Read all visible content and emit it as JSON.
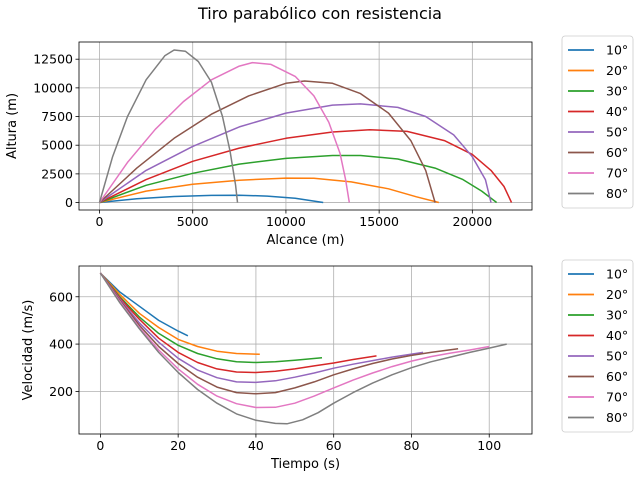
{
  "figure": {
    "title": "Tiro parabólico con resistencia"
  },
  "colors": [
    "#1f77b4",
    "#ff7f0e",
    "#2ca02c",
    "#d62728",
    "#9467bd",
    "#8c564b",
    "#e377c2",
    "#7f7f7f"
  ],
  "chart_data": [
    {
      "type": "line",
      "title": "",
      "xlabel": "Alcance (m)",
      "ylabel": "Altura (m)",
      "xlim": [
        -1100,
        23200
      ],
      "ylim": [
        -650,
        14000
      ],
      "xticks": [
        0,
        5000,
        10000,
        15000,
        20000
      ],
      "yticks": [
        0,
        2500,
        5000,
        7500,
        10000,
        12500
      ],
      "grid": true,
      "legend": "outside-right",
      "series": [
        {
          "name": "10°",
          "points": [
            [
              0,
              0
            ],
            [
              2000,
              330
            ],
            [
              4000,
              530
            ],
            [
              6000,
              620
            ],
            [
              7500,
              640
            ],
            [
              9000,
              560
            ],
            [
              10500,
              370
            ],
            [
              12000,
              0
            ]
          ]
        },
        {
          "name": "20°",
          "points": [
            [
              0,
              0
            ],
            [
              2500,
              1000
            ],
            [
              5000,
              1600
            ],
            [
              7500,
              1950
            ],
            [
              10000,
              2130
            ],
            [
              11500,
              2110
            ],
            [
              13500,
              1800
            ],
            [
              15500,
              1200
            ],
            [
              17000,
              500
            ],
            [
              18200,
              0
            ]
          ]
        },
        {
          "name": "30°",
          "points": [
            [
              0,
              0
            ],
            [
              2500,
              1500
            ],
            [
              5000,
              2550
            ],
            [
              7500,
              3350
            ],
            [
              10000,
              3850
            ],
            [
              12500,
              4100
            ],
            [
              14000,
              4100
            ],
            [
              16000,
              3800
            ],
            [
              18000,
              3000
            ],
            [
              19500,
              2000
            ],
            [
              20500,
              1000
            ],
            [
              21300,
              0
            ]
          ]
        },
        {
          "name": "40°",
          "points": [
            [
              0,
              0
            ],
            [
              2500,
              2000
            ],
            [
              5000,
              3600
            ],
            [
              7500,
              4750
            ],
            [
              10000,
              5600
            ],
            [
              12500,
              6150
            ],
            [
              14500,
              6350
            ],
            [
              16500,
              6200
            ],
            [
              18500,
              5400
            ],
            [
              20000,
              4200
            ],
            [
              21000,
              2800
            ],
            [
              21700,
              1400
            ],
            [
              22100,
              0
            ]
          ]
        },
        {
          "name": "50°",
          "points": [
            [
              0,
              0
            ],
            [
              2500,
              2800
            ],
            [
              5000,
              4900
            ],
            [
              7500,
              6600
            ],
            [
              10000,
              7800
            ],
            [
              12500,
              8500
            ],
            [
              14000,
              8600
            ],
            [
              16000,
              8300
            ],
            [
              17500,
              7500
            ],
            [
              19000,
              5900
            ],
            [
              20000,
              4000
            ],
            [
              20700,
              2000
            ],
            [
              21000,
              0
            ]
          ]
        },
        {
          "name": "60°",
          "points": [
            [
              0,
              0
            ],
            [
              2000,
              3000
            ],
            [
              4000,
              5600
            ],
            [
              6000,
              7700
            ],
            [
              8000,
              9300
            ],
            [
              10000,
              10400
            ],
            [
              11000,
              10600
            ],
            [
              12500,
              10400
            ],
            [
              14000,
              9500
            ],
            [
              15500,
              7800
            ],
            [
              16700,
              5400
            ],
            [
              17500,
              2800
            ],
            [
              18000,
              0
            ]
          ]
        },
        {
          "name": "70°",
          "points": [
            [
              0,
              0
            ],
            [
              1500,
              3500
            ],
            [
              3000,
              6400
            ],
            [
              4500,
              8800
            ],
            [
              6000,
              10700
            ],
            [
              7500,
              11900
            ],
            [
              8200,
              12200
            ],
            [
              9200,
              12050
            ],
            [
              10500,
              11000
            ],
            [
              11500,
              9300
            ],
            [
              12300,
              7000
            ],
            [
              12900,
              4300
            ],
            [
              13200,
              2000
            ],
            [
              13400,
              0
            ]
          ]
        },
        {
          "name": "80°",
          "points": [
            [
              0,
              0
            ],
            [
              700,
              4000
            ],
            [
              1500,
              7500
            ],
            [
              2500,
              10700
            ],
            [
              3500,
              12800
            ],
            [
              4000,
              13300
            ],
            [
              4600,
              13200
            ],
            [
              5300,
              12300
            ],
            [
              6000,
              10500
            ],
            [
              6600,
              7500
            ],
            [
              7000,
              4500
            ],
            [
              7300,
              1500
            ],
            [
              7400,
              0
            ]
          ]
        }
      ]
    },
    {
      "type": "line",
      "title": "",
      "xlabel": "Tiempo (s)",
      "ylabel": "Velocidad (m/s)",
      "xlim": [
        -5.5,
        111
      ],
      "ylim": [
        20,
        730
      ],
      "xticks": [
        0,
        20,
        40,
        60,
        80,
        100
      ],
      "yticks": [
        200,
        400,
        600
      ],
      "grid": true,
      "legend": "outside-right",
      "series": [
        {
          "name": "10°",
          "points": [
            [
              0,
              700
            ],
            [
              5,
              620
            ],
            [
              10,
              560
            ],
            [
              15,
              500
            ],
            [
              20,
              455
            ],
            [
              22.5,
              435
            ]
          ]
        },
        {
          "name": "20°",
          "points": [
            [
              0,
              700
            ],
            [
              5,
              610
            ],
            [
              10,
              530
            ],
            [
              15,
              470
            ],
            [
              20,
              420
            ],
            [
              25,
              390
            ],
            [
              30,
              370
            ],
            [
              35,
              360
            ],
            [
              41,
              357
            ]
          ]
        },
        {
          "name": "30°",
          "points": [
            [
              0,
              700
            ],
            [
              5,
              600
            ],
            [
              10,
              515
            ],
            [
              15,
              445
            ],
            [
              20,
              395
            ],
            [
              25,
              360
            ],
            [
              30,
              338
            ],
            [
              35,
              325
            ],
            [
              40,
              322
            ],
            [
              45,
              325
            ],
            [
              50,
              332
            ],
            [
              57,
              342
            ]
          ]
        },
        {
          "name": "40°",
          "points": [
            [
              0,
              700
            ],
            [
              5,
              595
            ],
            [
              10,
              505
            ],
            [
              15,
              425
            ],
            [
              20,
              365
            ],
            [
              25,
              322
            ],
            [
              30,
              295
            ],
            [
              35,
              282
            ],
            [
              40,
              280
            ],
            [
              45,
              285
            ],
            [
              50,
              295
            ],
            [
              55,
              308
            ],
            [
              60,
              320
            ],
            [
              65,
              335
            ],
            [
              71,
              350
            ]
          ]
        },
        {
          "name": "50°",
          "points": [
            [
              0,
              700
            ],
            [
              5,
              590
            ],
            [
              10,
              490
            ],
            [
              15,
              408
            ],
            [
              20,
              340
            ],
            [
              25,
              290
            ],
            [
              30,
              258
            ],
            [
              35,
              240
            ],
            [
              40,
              238
            ],
            [
              45,
              245
            ],
            [
              50,
              260
            ],
            [
              55,
              278
            ],
            [
              60,
              298
            ],
            [
              65,
              315
            ],
            [
              70,
              330
            ],
            [
              75,
              345
            ],
            [
              83,
              365
            ]
          ]
        },
        {
          "name": "60°",
          "points": [
            [
              0,
              700
            ],
            [
              5,
              585
            ],
            [
              10,
              480
            ],
            [
              15,
              390
            ],
            [
              20,
              318
            ],
            [
              25,
              260
            ],
            [
              30,
              218
            ],
            [
              35,
              195
            ],
            [
              40,
              190
            ],
            [
              45,
              195
            ],
            [
              50,
              215
            ],
            [
              55,
              240
            ],
            [
              60,
              270
            ],
            [
              65,
              295
            ],
            [
              70,
              318
            ],
            [
              75,
              337
            ],
            [
              80,
              352
            ],
            [
              85,
              365
            ],
            [
              92,
              380
            ]
          ]
        },
        {
          "name": "70°",
          "points": [
            [
              0,
              700
            ],
            [
              5,
              580
            ],
            [
              10,
              470
            ],
            [
              15,
              375
            ],
            [
              20,
              295
            ],
            [
              25,
              230
            ],
            [
              30,
              180
            ],
            [
              35,
              148
            ],
            [
              40,
              132
            ],
            [
              45,
              133
            ],
            [
              50,
              150
            ],
            [
              55,
              180
            ],
            [
              60,
              215
            ],
            [
              65,
              248
            ],
            [
              70,
              278
            ],
            [
              75,
              305
            ],
            [
              80,
              328
            ],
            [
              85,
              347
            ],
            [
              90,
              362
            ],
            [
              95,
              375
            ],
            [
              100,
              390
            ]
          ]
        },
        {
          "name": "80°",
          "points": [
            [
              0,
              700
            ],
            [
              5,
              575
            ],
            [
              10,
              465
            ],
            [
              15,
              365
            ],
            [
              20,
              280
            ],
            [
              25,
              208
            ],
            [
              30,
              150
            ],
            [
              35,
              105
            ],
            [
              40,
              78
            ],
            [
              45,
              65
            ],
            [
              48,
              63
            ],
            [
              52,
              80
            ],
            [
              56,
              110
            ],
            [
              60,
              150
            ],
            [
              65,
              195
            ],
            [
              70,
              235
            ],
            [
              75,
              270
            ],
            [
              80,
              300
            ],
            [
              85,
              325
            ],
            [
              90,
              345
            ],
            [
              95,
              365
            ],
            [
              100,
              383
            ],
            [
              104.5,
              400
            ]
          ]
        }
      ]
    }
  ]
}
